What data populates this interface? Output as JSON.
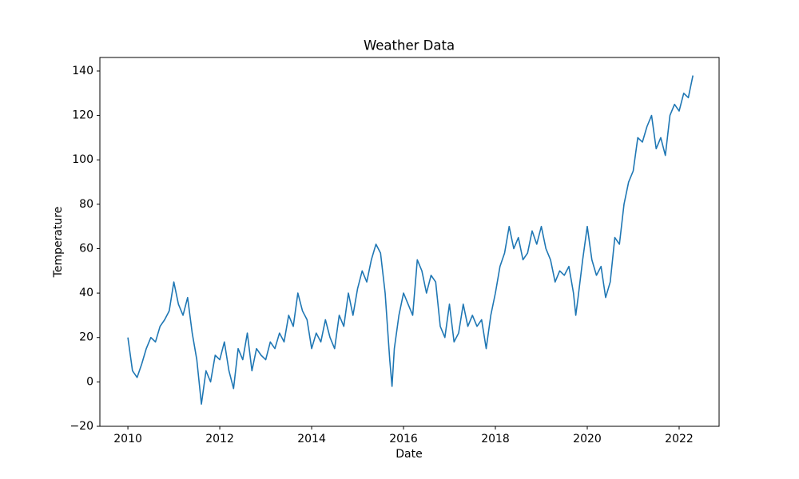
{
  "chart_data": {
    "type": "line",
    "title": "Weather Data",
    "x_label": "Date",
    "y_label": "Temperature",
    "x": [
      2010.0,
      2010.1,
      2010.2,
      2010.3,
      2010.4,
      2010.5,
      2010.6,
      2010.7,
      2010.8,
      2010.9,
      2011.0,
      2011.1,
      2011.2,
      2011.3,
      2011.4,
      2011.5,
      2011.6,
      2011.7,
      2011.8,
      2011.9,
      2012.0,
      2012.1,
      2012.2,
      2012.3,
      2012.4,
      2012.5,
      2012.6,
      2012.7,
      2012.8,
      2012.9,
      2013.0,
      2013.1,
      2013.2,
      2013.3,
      2013.4,
      2013.5,
      2013.6,
      2013.7,
      2013.8,
      2013.9,
      2014.0,
      2014.1,
      2014.2,
      2014.3,
      2014.4,
      2014.5,
      2014.6,
      2014.7,
      2014.8,
      2014.9,
      2015.0,
      2015.1,
      2015.2,
      2015.3,
      2015.4,
      2015.5,
      2015.6,
      2015.7,
      2015.75,
      2015.8,
      2015.9,
      2016.0,
      2016.1,
      2016.2,
      2016.3,
      2016.4,
      2016.5,
      2016.6,
      2016.7,
      2016.8,
      2016.9,
      2017.0,
      2017.1,
      2017.2,
      2017.3,
      2017.4,
      2017.5,
      2017.6,
      2017.7,
      2017.8,
      2017.9,
      2018.0,
      2018.1,
      2018.2,
      2018.3,
      2018.4,
      2018.5,
      2018.6,
      2018.7,
      2018.8,
      2018.9,
      2019.0,
      2019.1,
      2019.2,
      2019.3,
      2019.4,
      2019.5,
      2019.6,
      2019.7,
      2019.75,
      2019.8,
      2019.9,
      2020.0,
      2020.1,
      2020.2,
      2020.3,
      2020.4,
      2020.5,
      2020.6,
      2020.7,
      2020.8,
      2020.9,
      2021.0,
      2021.1,
      2021.2,
      2021.3,
      2021.4,
      2021.5,
      2021.6,
      2021.7,
      2021.8,
      2021.9,
      2022.0,
      2022.1,
      2022.2,
      2022.3
    ],
    "series": [
      {
        "name": "Temperature",
        "color": "#1f77b4",
        "values": [
          20,
          5,
          2,
          8,
          15,
          20,
          18,
          25,
          28,
          32,
          45,
          35,
          30,
          38,
          22,
          10,
          -10,
          5,
          0,
          12,
          10,
          18,
          5,
          -3,
          15,
          10,
          22,
          5,
          15,
          12,
          10,
          18,
          15,
          22,
          18,
          30,
          25,
          40,
          32,
          28,
          15,
          22,
          18,
          28,
          20,
          15,
          30,
          25,
          40,
          30,
          42,
          50,
          45,
          55,
          62,
          58,
          40,
          10,
          -2,
          15,
          30,
          40,
          35,
          30,
          55,
          50,
          40,
          48,
          45,
          25,
          20,
          35,
          18,
          22,
          35,
          25,
          30,
          25,
          28,
          15,
          30,
          40,
          52,
          58,
          70,
          60,
          65,
          55,
          58,
          68,
          62,
          70,
          60,
          55,
          45,
          50,
          48,
          52,
          40,
          30,
          38,
          55,
          70,
          55,
          48,
          52,
          38,
          45,
          65,
          62,
          80,
          90,
          95,
          110,
          108,
          115,
          120,
          105,
          110,
          102,
          120,
          125,
          122,
          130,
          128,
          138
        ]
      }
    ],
    "xlim": [
      2009.39,
      2022.87
    ],
    "xticks": [
      2010,
      2012,
      2014,
      2016,
      2018,
      2020,
      2022
    ],
    "ylim": [
      -20,
      146.1
    ],
    "yticks": [
      {
        "value": -20,
        "label": "−20"
      },
      0,
      20,
      40,
      60,
      80,
      100,
      120,
      140
    ]
  }
}
